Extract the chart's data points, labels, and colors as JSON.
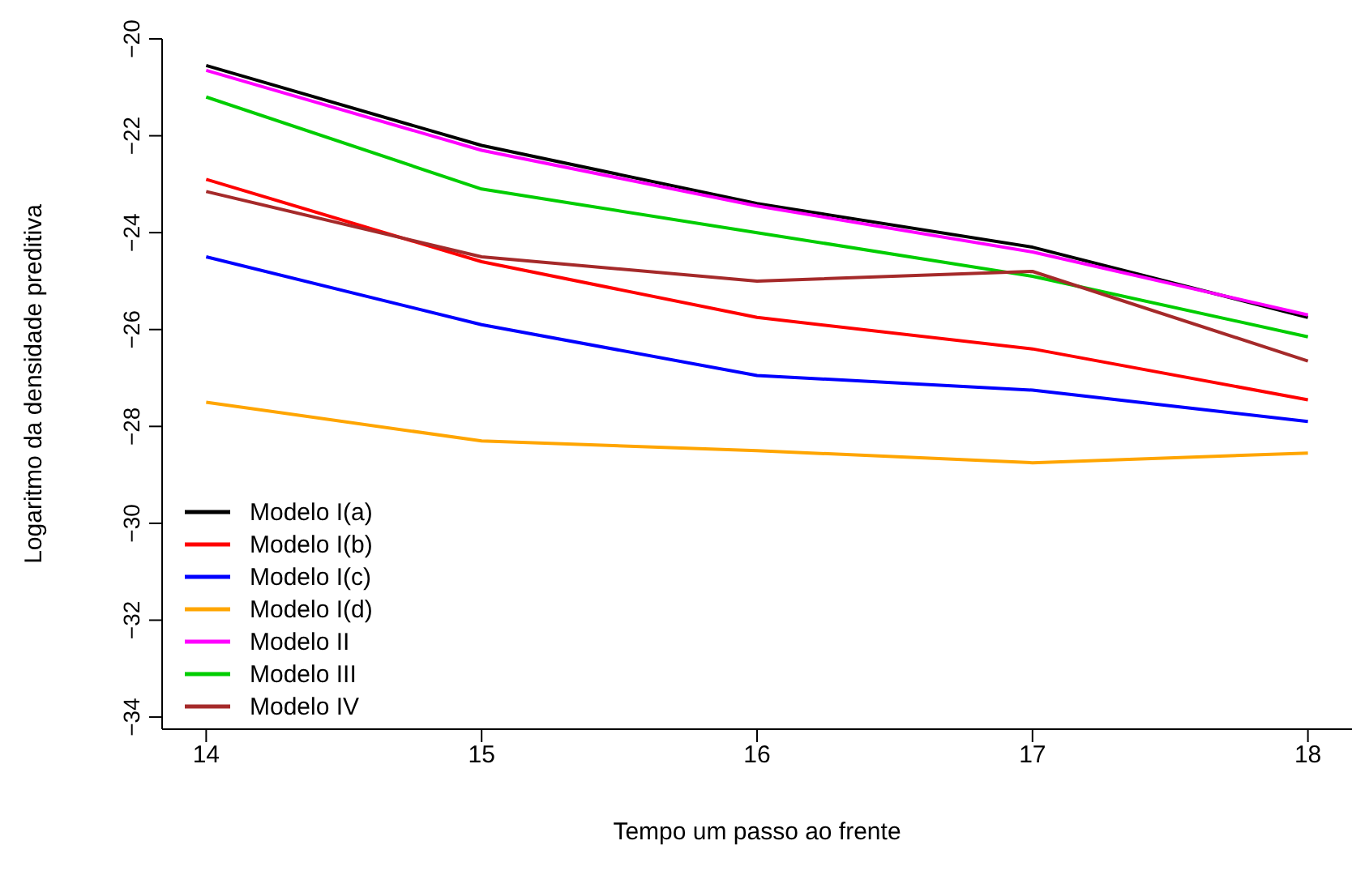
{
  "chart_data": {
    "type": "line",
    "xlabel": "Tempo um passo ao frente",
    "ylabel": "Logaritmo da densidade preditiva",
    "x": [
      14,
      15,
      16,
      17,
      18
    ],
    "xlim": [
      13.84,
      18.16
    ],
    "xticks": [
      14,
      15,
      16,
      17,
      18
    ],
    "ylim": [
      -34.25,
      -20
    ],
    "yticks": [
      {
        "value": -20,
        "label": "−20"
      },
      {
        "value": -22,
        "label": "−22"
      },
      {
        "value": -24,
        "label": "−24"
      },
      {
        "value": -26,
        "label": "−26"
      },
      {
        "value": -28,
        "label": "−28"
      },
      {
        "value": -30,
        "label": "−30"
      },
      {
        "value": -32,
        "label": "−32"
      },
      {
        "value": -34,
        "label": "−34"
      }
    ],
    "grid": false,
    "legend": "bottom left",
    "marker": "none",
    "line_style": "solid",
    "series": [
      {
        "name": "Modelo I(a)",
        "color": "#000000",
        "values": [
          -20.55,
          -22.2,
          -23.4,
          -24.3,
          -25.75
        ]
      },
      {
        "name": "Modelo I(b)",
        "color": "#ff0000",
        "values": [
          -22.9,
          -24.6,
          -25.75,
          -26.4,
          -27.45
        ]
      },
      {
        "name": "Modelo I(c)",
        "color": "#0000ff",
        "values": [
          -24.5,
          -25.9,
          -26.95,
          -27.25,
          -27.9
        ]
      },
      {
        "name": "Modelo I(d)",
        "color": "#ffa500",
        "values": [
          -27.5,
          -28.3,
          -28.5,
          -28.75,
          -28.55
        ]
      },
      {
        "name": "Modelo II",
        "color": "#ff00ff",
        "values": [
          -20.65,
          -22.3,
          -23.45,
          -24.4,
          -25.7
        ]
      },
      {
        "name": "Modelo III",
        "color": "#00cd00",
        "values": [
          -21.2,
          -23.1,
          -24.0,
          -24.9,
          -26.15
        ]
      },
      {
        "name": "Modelo IV",
        "color": "#a52a2a",
        "values": [
          -23.15,
          -24.5,
          -25.0,
          -24.8,
          -26.65
        ]
      }
    ]
  }
}
